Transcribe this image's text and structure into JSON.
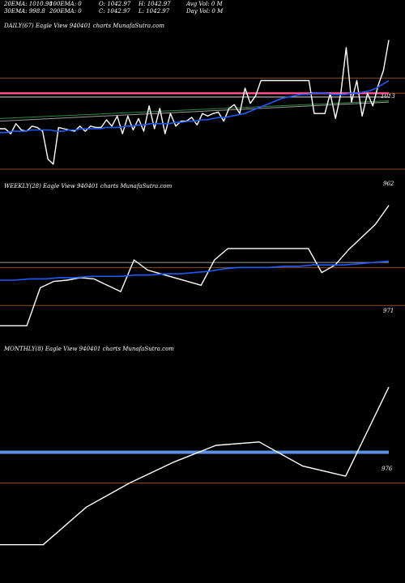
{
  "header": {
    "ema20": "20EMA: 1010.98",
    "ema100": "100EMA: 0",
    "open": "O: 1042.97",
    "high": "H: 1042.97",
    "avgvol": "Avg Vol: 0  M",
    "ema30": "30EMA: 998.8",
    "ema200": "200EMA: 0",
    "close": "C: 1042.97",
    "low": "L: 1042.97",
    "dayvol": "Day Vol: 0  M"
  },
  "colors": {
    "background": "#000000",
    "price": "#ffffff",
    "ema": "#1e5bff",
    "level": "#8a4a1e",
    "pink": "#ff4f8b",
    "grey": "#9a9a9a"
  },
  "chart_data": [
    {
      "type": "line",
      "title": "DAILY(67) Eagle  View  940401 charts MunafaSutra.com",
      "ylim": [
        945,
        1060
      ],
      "tick_labels": [
        "1013",
        "962"
      ],
      "levels": [
        1024,
        1012,
        952
      ],
      "series": [
        {
          "role": "price",
          "values": [
            984,
            984,
            980,
            988,
            983,
            982,
            986,
            985,
            982,
            960,
            956,
            985,
            984,
            983,
            982,
            986,
            982,
            986,
            985,
            985,
            991,
            986,
            994,
            980,
            994,
            983,
            992,
            982,
            1002,
            984,
            1000,
            980,
            996,
            986,
            990,
            990,
            993,
            987,
            996,
            994,
            996,
            997,
            990,
            1000,
            1003,
            996,
            1016,
            1004,
            1010,
            1022,
            1022,
            1022,
            1022,
            1022,
            1022,
            1022,
            1022,
            1022,
            1022,
            996,
            996,
            996,
            1012,
            992,
            1012,
            1048,
            1005,
            1022,
            994,
            1012,
            1002,
            1018,
            1030,
            1054
          ]
        },
        {
          "role": "ema",
          "values": [
            981,
            981,
            982,
            982,
            982,
            983,
            983,
            983,
            983,
            982,
            982,
            983,
            983,
            984,
            984,
            984,
            984,
            985,
            985,
            985,
            986,
            986,
            987,
            987,
            988,
            988,
            988,
            988,
            989,
            989,
            990,
            990,
            991,
            991,
            992,
            993,
            993,
            994,
            995,
            996,
            998,
            1000,
            1002,
            1004,
            1006,
            1008,
            1009,
            1010,
            1011,
            1011,
            1012,
            1012,
            1012,
            1011,
            1011,
            1011,
            1012,
            1012,
            1013,
            1014,
            1016,
            1019,
            1022
          ]
        }
      ]
    },
    {
      "type": "line",
      "title": "WEEKLY(28) Eagle  View  940401 charts MunafaSutra.com",
      "ylim": [
        940,
        1055
      ],
      "tick_labels": [
        "971"
      ],
      "levels": [
        996,
        966
      ],
      "series": [
        {
          "role": "price",
          "values": [
            950,
            950,
            950,
            980,
            985,
            986,
            988,
            987,
            982,
            977,
            1002,
            994,
            991,
            988,
            985,
            982,
            1002,
            1011,
            1011,
            1011,
            1011,
            1011,
            1011,
            1011,
            992,
            998,
            1010,
            1020,
            1030,
            1045
          ]
        },
        {
          "role": "ema",
          "values": [
            986,
            986,
            987,
            987,
            988,
            988,
            989,
            989,
            989,
            990,
            990,
            991,
            991,
            992,
            993,
            995,
            996,
            996,
            996,
            997,
            997,
            998,
            998,
            998,
            999,
            1000,
            1001
          ]
        }
      ]
    },
    {
      "type": "line",
      "title": "MONTHLY(8) Eagle  View  940401 charts MunafaSutra.com",
      "ylim": [
        930,
        1060
      ],
      "tick_labels": [
        "976"
      ],
      "levels": [
        986
      ],
      "series": [
        {
          "role": "price",
          "values": [
            950,
            950,
            972,
            986,
            998,
            1008,
            1010,
            996,
            990,
            1042
          ]
        },
        {
          "role": "ema",
          "values": [
            1004,
            1004
          ]
        }
      ]
    }
  ]
}
